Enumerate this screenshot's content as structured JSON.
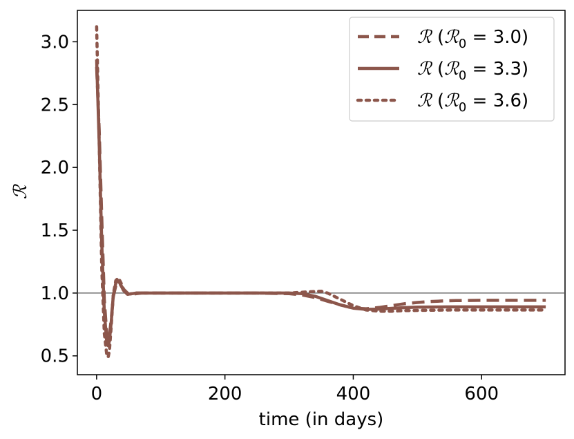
{
  "chart_data": {
    "type": "line",
    "xlabel": "time (in days)",
    "ylabel": "ℛ",
    "xlim": [
      -30,
      730
    ],
    "ylim": [
      0.35,
      3.25
    ],
    "xticks": [
      0,
      200,
      400,
      600
    ],
    "yticks": [
      0.5,
      1.0,
      1.5,
      2.0,
      2.5,
      3.0
    ],
    "xtick_labels": [
      "0",
      "200",
      "400",
      "600"
    ],
    "ytick_labels": [
      "0.5",
      "1.0",
      "1.5",
      "2.0",
      "2.5",
      "3.0"
    ],
    "grid": false,
    "reference_line": {
      "y": 1.0
    },
    "legend_position": "top-right",
    "line_color": "#8c564b",
    "series": [
      {
        "name": "ℛ (ℛ₀ = 3.0)",
        "legend_parts": [
          "ℛ (",
          "ℛ",
          "0",
          " = 3.0)"
        ],
        "style": "dashed",
        "x": [
          0,
          4,
          8,
          12,
          16,
          18,
          20,
          23,
          26,
          30,
          34,
          38,
          42,
          48,
          55,
          62,
          70,
          80,
          100,
          150,
          200,
          250,
          300,
          320,
          340,
          360,
          380,
          400,
          420,
          440,
          460,
          480,
          500,
          520,
          540,
          560,
          600,
          650,
          700
        ],
        "y": [
          2.8,
          2.3,
          1.6,
          0.95,
          0.66,
          0.62,
          0.66,
          0.8,
          0.97,
          1.06,
          1.08,
          1.06,
          1.03,
          1.0,
          0.99,
          0.995,
          1.0,
          1.0,
          1.0,
          1.0,
          1.0,
          1.0,
          0.995,
          0.985,
          0.965,
          0.935,
          0.905,
          0.88,
          0.875,
          0.885,
          0.9,
          0.915,
          0.925,
          0.932,
          0.937,
          0.94,
          0.942,
          0.942,
          0.942
        ]
      },
      {
        "name": "ℛ (ℛ₀ = 3.3)",
        "legend_parts": [
          "ℛ (",
          "ℛ",
          "0",
          " = 3.3)"
        ],
        "style": "solid",
        "x": [
          0,
          4,
          8,
          12,
          16,
          18,
          20,
          23,
          26,
          30,
          34,
          38,
          42,
          48,
          55,
          62,
          70,
          80,
          100,
          150,
          200,
          250,
          300,
          320,
          340,
          360,
          380,
          400,
          420,
          440,
          460,
          480,
          500,
          550,
          600,
          650,
          700
        ],
        "y": [
          2.86,
          2.2,
          1.4,
          0.85,
          0.6,
          0.58,
          0.62,
          0.78,
          0.98,
          1.08,
          1.1,
          1.06,
          1.02,
          0.99,
          0.995,
          1.0,
          1.0,
          1.0,
          1.0,
          1.0,
          1.0,
          1.0,
          1.0,
          0.995,
          0.975,
          0.94,
          0.905,
          0.88,
          0.87,
          0.872,
          0.878,
          0.884,
          0.888,
          0.89,
          0.89,
          0.89,
          0.89
        ]
      },
      {
        "name": "ℛ (ℛ₀ = 3.6)",
        "legend_parts": [
          "ℛ (",
          "ℛ",
          "0",
          " = 3.6)"
        ],
        "style": "dotted",
        "x": [
          0,
          4,
          8,
          12,
          16,
          18,
          20,
          23,
          26,
          30,
          34,
          38,
          42,
          48,
          55,
          62,
          70,
          80,
          100,
          150,
          200,
          250,
          300,
          330,
          350,
          360,
          380,
          400,
          420,
          440,
          460,
          480,
          500,
          550,
          600,
          650,
          700
        ],
        "y": [
          3.12,
          2.2,
          1.2,
          0.68,
          0.5,
          0.49,
          0.54,
          0.75,
          0.99,
          1.1,
          1.12,
          1.08,
          1.03,
          0.99,
          0.995,
          1.0,
          1.0,
          1.0,
          1.0,
          1.0,
          1.0,
          1.0,
          1.0,
          1.01,
          1.015,
          1.0,
          0.95,
          0.9,
          0.865,
          0.855,
          0.855,
          0.86,
          0.862,
          0.865,
          0.865,
          0.865,
          0.865
        ]
      }
    ]
  }
}
